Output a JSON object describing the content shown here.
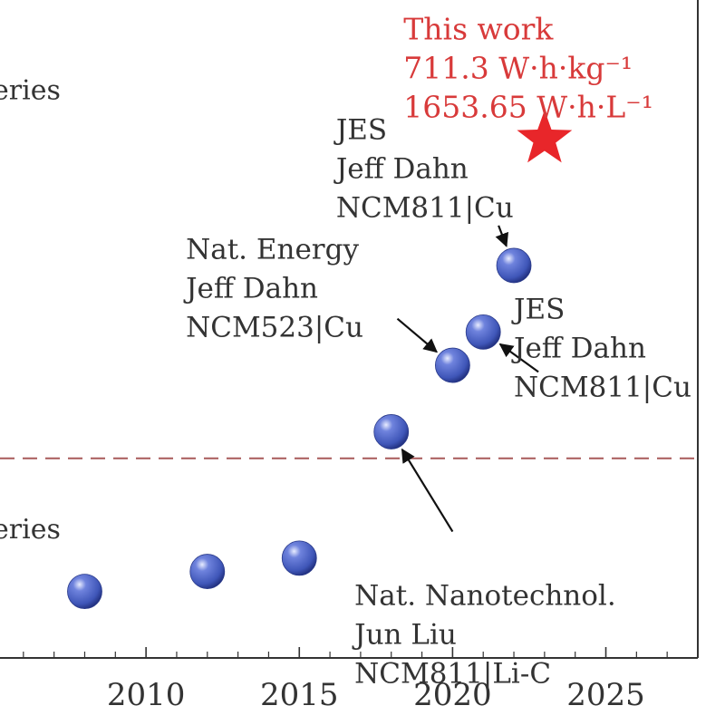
{
  "chart_data": {
    "type": "scatter",
    "title": "",
    "xlabel": "",
    "ylabel": "",
    "xlim": [
      2005,
      2028
    ],
    "x_ticks": [
      2010,
      2015,
      2020,
      2025
    ],
    "x_tick_labels": [
      "2010",
      "2015",
      "2020",
      "2025"
    ],
    "grid": false,
    "colors": {
      "point": "#3f56b8",
      "star": "#e8262a",
      "highlight_text": "#d83a3a",
      "threshold_line": "#a85a5a",
      "axis": "#333333",
      "text": "#333333"
    },
    "points": [
      {
        "x": 2008,
        "y": 0.1
      },
      {
        "x": 2012,
        "y": 0.13
      },
      {
        "x": 2015,
        "y": 0.15
      },
      {
        "x": 2018,
        "y": 0.34
      },
      {
        "x": 2020,
        "y": 0.44
      },
      {
        "x": 2021,
        "y": 0.49
      },
      {
        "x": 2022,
        "y": 0.59
      }
    ],
    "star_point": {
      "x": 2023,
      "y": 0.78
    },
    "threshold_y": 0.3,
    "series_labels": [
      {
        "text": "eries",
        "x": 2005.0,
        "y": 0.84
      },
      {
        "text": "eries",
        "x": 2005.0,
        "y": 0.18
      }
    ],
    "highlight_annotation": {
      "lines": [
        "This work",
        "711.3 W·h·kg⁻¹",
        "1653.65 W·h·L⁻¹"
      ],
      "x": 2018.4,
      "y": 0.93
    },
    "annotations": [
      {
        "lines": [
          "JES",
          "Jeff Dahn",
          "NCM811|Cu"
        ],
        "x": 2016.2,
        "y": 0.78,
        "anchor": "start",
        "target_index": 6,
        "arrow_from": {
          "x": 2021.5,
          "y": 0.65
        }
      },
      {
        "lines": [
          "Nat. Energy",
          "Jeff Dahn",
          "NCM523|Cu"
        ],
        "x": 2011.3,
        "y": 0.6,
        "anchor": "start",
        "target_index": 4,
        "arrow_from": {
          "x": 2018.2,
          "y": 0.51
        }
      },
      {
        "lines": [
          "JES",
          "Jeff Dahn",
          "NCM811|Cu"
        ],
        "x": 2022.0,
        "y": 0.51,
        "anchor": "start",
        "target_index": 5,
        "arrow_from": {
          "x": 2022.8,
          "y": 0.43
        }
      },
      {
        "lines": [
          "Nat. Nanotechnol.",
          "Jun Liu",
          "NCM811|Li-C"
        ],
        "x": 2016.8,
        "y": 0.08,
        "anchor": "start",
        "target_index": 3,
        "arrow_from": {
          "x": 2020.0,
          "y": 0.19
        }
      }
    ]
  }
}
